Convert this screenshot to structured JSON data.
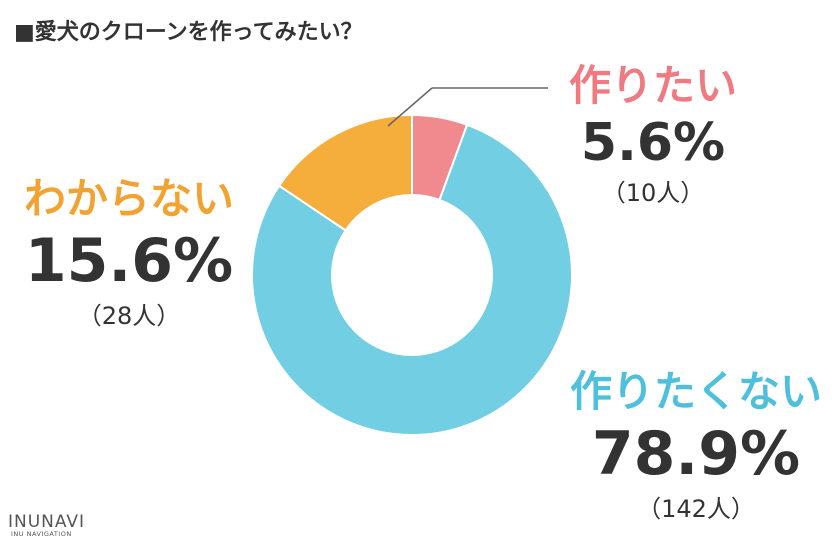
{
  "title": "■愛犬のクローンを作ってみたい？",
  "logo": {
    "main": "INUNAVI",
    "sub": "INU NAVIGATION"
  },
  "chart_data": {
    "type": "pie",
    "donut": true,
    "categories": [
      "作りたい",
      "作りたくない",
      "わからない"
    ],
    "values": [
      5.6,
      78.9,
      15.6
    ],
    "counts": [
      10,
      142,
      28
    ],
    "labels": [
      {
        "name": "作りたい",
        "percent": "5.6%",
        "count": "（10人）"
      },
      {
        "name": "作りたくない",
        "percent": "78.9%",
        "count": "（142人）"
      },
      {
        "name": "わからない",
        "percent": "15.6%",
        "count": "（28人）"
      }
    ],
    "colors": [
      "#f08a8e",
      "#72cee3",
      "#f5ad3c"
    ],
    "legend": "none"
  }
}
